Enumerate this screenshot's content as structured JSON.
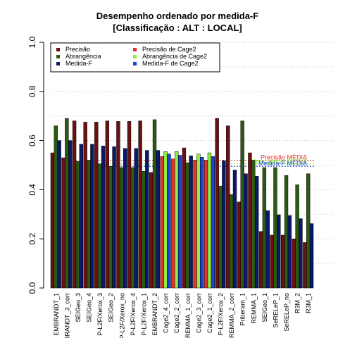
{
  "chart_data": {
    "type": "bar",
    "title": "Desempenho ordenado por medida-F",
    "subtitle": "[Classificação : ALT : LOCAL]",
    "xlabel": "",
    "ylabel": "",
    "ylim": [
      0,
      1
    ],
    "y_ticks": [
      "0.0",
      "0.2",
      "0.4",
      "0.6",
      "0.8",
      "1.0"
    ],
    "grid": "dotted horizontal",
    "legend_position": "top-left",
    "categories": [
      "EMBRANDT_1",
      "EMBRANDT_3_corr",
      "SEIGeo_3",
      "SEIGeo_4",
      "P-L2F/Xerox_3",
      "SEIGeo_2",
      "P-L2F/Xerox_no",
      "P-L2F/Xerox_4",
      "P-L2F/Xerox_1",
      "EMBRANDT_2",
      "Cage2_4_corr",
      "Cage2_2_corr",
      "REMMA_1_corr",
      "Cage2_3_corr",
      "Cage2_1_corr",
      "P-L2F/Xerox_2",
      "REMMA_2_corr",
      "Priberam_1",
      "REMMA_1",
      "SEIGeo_1",
      "SeRELeP_1",
      "SeRELeP_no",
      "R3M_2",
      "R3M_1"
    ],
    "series": [
      {
        "name": "Precisão",
        "color": "#6b1111",
        "values": [
          0.55,
          0.53,
          0.68,
          0.675,
          0.675,
          0.68,
          0.678,
          0.678,
          0.68,
          0.47,
          0,
          0,
          0.57,
          0,
          0,
          0.69,
          0.66,
          0.35,
          0.55,
          0.23,
          0.215,
          0.215,
          0.2,
          0.185
        ]
      },
      {
        "name": "Abrangência",
        "color": "#2d5a12",
        "values": [
          0.66,
          0.69,
          0.515,
          0.52,
          0.505,
          0.495,
          0.49,
          0.49,
          0.475,
          0.685,
          0,
          0,
          0.51,
          0,
          0,
          0.415,
          0.38,
          0.68,
          0.52,
          0.49,
          0.49,
          0.458,
          0.42,
          0.465
        ]
      },
      {
        "name": "Medida-F",
        "color": "#0a1a6b",
        "values": [
          0.6,
          0.6,
          0.585,
          0.585,
          0.578,
          0.575,
          0.568,
          0.568,
          0.56,
          0.56,
          0,
          0,
          0.538,
          0,
          0,
          0.518,
          0.48,
          0.465,
          0.455,
          0.315,
          0.298,
          0.295,
          0.282,
          0.262
        ]
      },
      {
        "name": "Precisão  de  Cage2",
        "color": "#e3332b",
        "values": [
          0,
          0,
          0,
          0,
          0,
          0,
          0,
          0,
          0,
          0,
          0.535,
          0.525,
          0,
          0.52,
          0.52,
          0,
          0,
          0,
          0,
          0,
          0,
          0,
          0,
          0
        ]
      },
      {
        "name": "Abrangência  de  Cage2",
        "color": "#8eef3e",
        "values": [
          0,
          0,
          0,
          0,
          0,
          0,
          0,
          0,
          0,
          0,
          0.555,
          0.555,
          0,
          0.545,
          0.55,
          0,
          0,
          0,
          0,
          0,
          0,
          0,
          0,
          0
        ]
      },
      {
        "name": "Medida-F  de  Cage2",
        "color": "#1f3fd6",
        "values": [
          0,
          0,
          0,
          0,
          0,
          0,
          0,
          0,
          0,
          0,
          0.545,
          0.54,
          0,
          0.532,
          0.535,
          0,
          0,
          0,
          0,
          0,
          0,
          0,
          0,
          0
        ]
      }
    ],
    "reference_lines": [
      {
        "label": "Precisão MÉDIA",
        "value": 0.52,
        "color": "#e3332b"
      },
      {
        "label": "Abrangência MÉDIA",
        "value": 0.505,
        "color": "#8eef3e"
      },
      {
        "label": "Medida-F MÉDIA",
        "value": 0.495,
        "color": "#1f3fd6"
      }
    ]
  }
}
